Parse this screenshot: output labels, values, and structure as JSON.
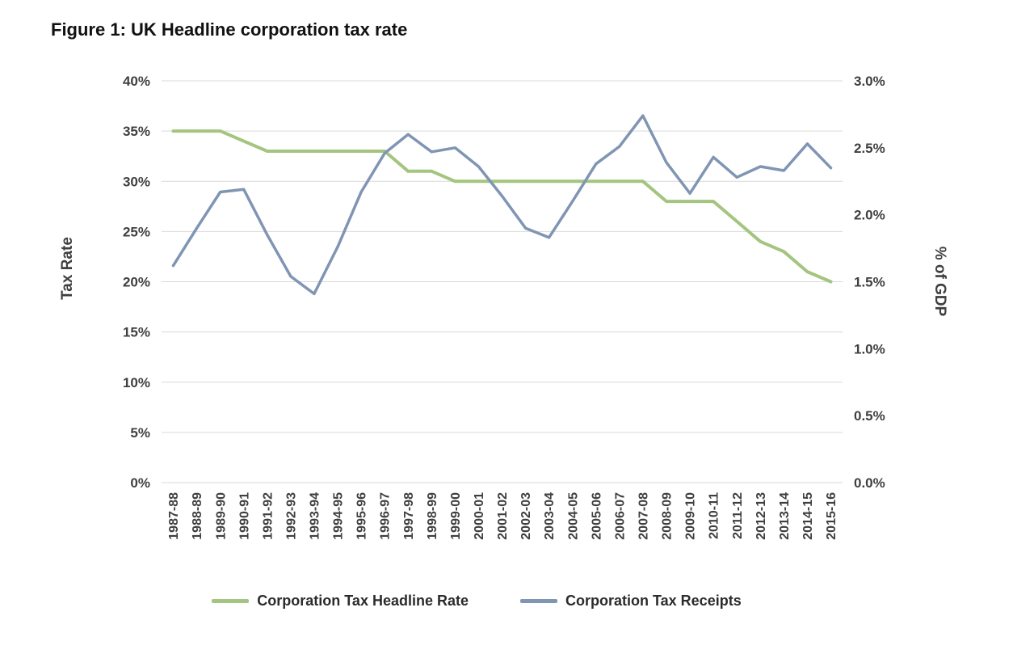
{
  "title": "Figure 1: UK Headline corporation tax rate",
  "colors": {
    "grid": "#D9D9D9",
    "axis_text": "#3F3F3F",
    "title_text": "#111111"
  },
  "chart_data": {
    "type": "line",
    "title": "Figure 1: UK Headline corporation tax rate",
    "categories": [
      "1987-88",
      "1988-89",
      "1989-90",
      "1990-91",
      "1991-92",
      "1992-93",
      "1993-94",
      "1994-95",
      "1995-96",
      "1996-97",
      "1997-98",
      "1998-99",
      "1999-00",
      "2000-01",
      "2001-02",
      "2002-03",
      "2003-04",
      "2004-05",
      "2005-06",
      "2006-07",
      "2007-08",
      "2008-09",
      "2009-10",
      "2010-11",
      "2011-12",
      "2012-13",
      "2013-14",
      "2014-15",
      "2015-16"
    ],
    "left_axis": {
      "label": "Tax Rate",
      "min": 0,
      "max": 40,
      "step": 5,
      "tick_suffix": "%"
    },
    "right_axis": {
      "label": "% of GDP",
      "min": 0,
      "max": 3,
      "step": 0.5,
      "tick_suffix": "%"
    },
    "grid": true,
    "legend_position": "bottom",
    "series": [
      {
        "name": "Corporation Tax Headline Rate",
        "axis": "left",
        "color": "#A3C57F",
        "values": [
          35,
          35,
          35,
          34,
          33,
          33,
          33,
          33,
          33,
          33,
          31,
          31,
          30,
          30,
          30,
          30,
          30,
          30,
          30,
          30,
          30,
          28,
          28,
          28,
          26,
          24,
          23,
          21,
          20
        ]
      },
      {
        "name": "Corporation Tax Receipts",
        "axis": "right",
        "color": "#8095B3",
        "values": [
          1.62,
          1.9,
          2.17,
          2.19,
          1.85,
          1.54,
          1.41,
          1.76,
          2.17,
          2.46,
          2.6,
          2.47,
          2.5,
          2.36,
          2.14,
          1.9,
          1.83,
          2.1,
          2.38,
          2.51,
          2.74,
          2.39,
          2.16,
          2.43,
          2.28,
          2.36,
          2.33,
          2.53,
          2.35
        ]
      }
    ]
  }
}
